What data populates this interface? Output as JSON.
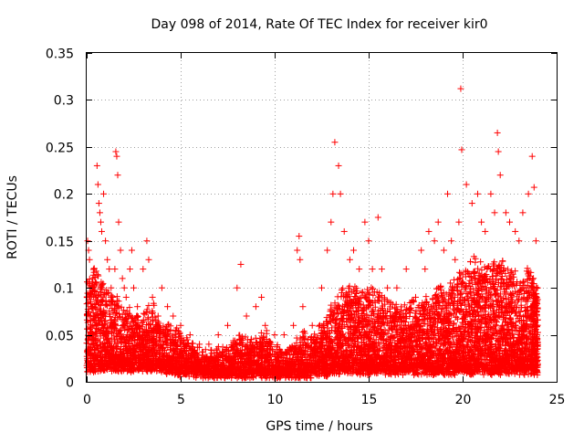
{
  "chart_data": {
    "type": "scatter",
    "title": "Day 098 of 2014, Rate Of TEC Index for receiver kir0",
    "xlabel": "GPS time / hours",
    "ylabel": "ROTI / TECUs",
    "xlim": [
      0,
      25
    ],
    "ylim": [
      0,
      0.35
    ],
    "x_ticks": [
      "0",
      "5",
      "10",
      "15",
      "20",
      "25"
    ],
    "y_ticks": [
      "0",
      "0.05",
      "0.1",
      "0.15",
      "0.2",
      "0.25",
      "0.3",
      "0.35"
    ],
    "x_tick_values": [
      0,
      5,
      10,
      15,
      20,
      25
    ],
    "y_tick_values": [
      0,
      0.05,
      0.1,
      0.15,
      0.2,
      0.25,
      0.3,
      0.35
    ],
    "grid": true,
    "marker": "plus",
    "color": "#ff0000",
    "series": [
      {
        "name": "ROTI",
        "points": [
          [
            0.05,
            0.15
          ],
          [
            0.1,
            0.14
          ],
          [
            0.15,
            0.13
          ],
          [
            0.2,
            0.1
          ],
          [
            0.25,
            0.08
          ],
          [
            0.3,
            0.06
          ],
          [
            0.35,
            0.05
          ],
          [
            0.4,
            0.12
          ],
          [
            0.45,
            0.09
          ],
          [
            0.5,
            0.07
          ],
          [
            0.55,
            0.23
          ],
          [
            0.6,
            0.21
          ],
          [
            0.65,
            0.19
          ],
          [
            0.7,
            0.18
          ],
          [
            0.75,
            0.17
          ],
          [
            0.8,
            0.16
          ],
          [
            0.9,
            0.2
          ],
          [
            1.0,
            0.15
          ],
          [
            1.1,
            0.13
          ],
          [
            1.2,
            0.12
          ],
          [
            1.3,
            0.1
          ],
          [
            1.4,
            0.09
          ],
          [
            1.5,
            0.12
          ],
          [
            1.55,
            0.245
          ],
          [
            1.6,
            0.24
          ],
          [
            1.65,
            0.22
          ],
          [
            1.7,
            0.17
          ],
          [
            1.8,
            0.14
          ],
          [
            1.9,
            0.11
          ],
          [
            2.0,
            0.1
          ],
          [
            2.1,
            0.09
          ],
          [
            2.3,
            0.12
          ],
          [
            2.4,
            0.14
          ],
          [
            2.5,
            0.1
          ],
          [
            2.7,
            0.08
          ],
          [
            3.0,
            0.12
          ],
          [
            3.2,
            0.15
          ],
          [
            3.3,
            0.13
          ],
          [
            3.5,
            0.09
          ],
          [
            3.8,
            0.07
          ],
          [
            4.0,
            0.1
          ],
          [
            4.3,
            0.08
          ],
          [
            4.6,
            0.07
          ],
          [
            5.0,
            0.06
          ],
          [
            5.5,
            0.05
          ],
          [
            6.0,
            0.04
          ],
          [
            6.5,
            0.04
          ],
          [
            7.0,
            0.05
          ],
          [
            7.5,
            0.06
          ],
          [
            8.0,
            0.1
          ],
          [
            8.2,
            0.125
          ],
          [
            8.5,
            0.07
          ],
          [
            9.0,
            0.08
          ],
          [
            9.3,
            0.09
          ],
          [
            9.5,
            0.06
          ],
          [
            10.0,
            0.05
          ],
          [
            10.5,
            0.05
          ],
          [
            11.0,
            0.06
          ],
          [
            11.2,
            0.14
          ],
          [
            11.3,
            0.155
          ],
          [
            11.35,
            0.13
          ],
          [
            11.5,
            0.08
          ],
          [
            12.0,
            0.06
          ],
          [
            12.5,
            0.1
          ],
          [
            12.8,
            0.14
          ],
          [
            13.0,
            0.17
          ],
          [
            13.1,
            0.2
          ],
          [
            13.2,
            0.255
          ],
          [
            13.4,
            0.23
          ],
          [
            13.5,
            0.2
          ],
          [
            13.7,
            0.16
          ],
          [
            14.0,
            0.13
          ],
          [
            14.2,
            0.14
          ],
          [
            14.5,
            0.12
          ],
          [
            14.8,
            0.17
          ],
          [
            15.0,
            0.15
          ],
          [
            15.2,
            0.12
          ],
          [
            15.5,
            0.175
          ],
          [
            15.7,
            0.12
          ],
          [
            16.0,
            0.1
          ],
          [
            16.5,
            0.1
          ],
          [
            17.0,
            0.12
          ],
          [
            17.5,
            0.09
          ],
          [
            17.8,
            0.14
          ],
          [
            18.0,
            0.12
          ],
          [
            18.2,
            0.16
          ],
          [
            18.5,
            0.15
          ],
          [
            18.7,
            0.17
          ],
          [
            19.0,
            0.14
          ],
          [
            19.2,
            0.2
          ],
          [
            19.4,
            0.15
          ],
          [
            19.6,
            0.13
          ],
          [
            19.8,
            0.17
          ],
          [
            19.9,
            0.312
          ],
          [
            19.95,
            0.247
          ],
          [
            20.2,
            0.21
          ],
          [
            20.5,
            0.19
          ],
          [
            20.8,
            0.2
          ],
          [
            21.0,
            0.17
          ],
          [
            21.2,
            0.16
          ],
          [
            21.5,
            0.2
          ],
          [
            21.7,
            0.18
          ],
          [
            21.85,
            0.265
          ],
          [
            21.9,
            0.245
          ],
          [
            22.0,
            0.22
          ],
          [
            22.3,
            0.18
          ],
          [
            22.5,
            0.17
          ],
          [
            22.8,
            0.16
          ],
          [
            23.0,
            0.15
          ],
          [
            23.2,
            0.18
          ],
          [
            23.5,
            0.2
          ],
          [
            23.7,
            0.24
          ],
          [
            23.8,
            0.207
          ],
          [
            23.9,
            0.15
          ]
        ]
      }
    ],
    "dense_band": [
      [
        0.0,
        0.015,
        0.11
      ],
      [
        0.3,
        0.015,
        0.12
      ],
      [
        0.6,
        0.015,
        0.11
      ],
      [
        0.9,
        0.015,
        0.1
      ],
      [
        1.2,
        0.015,
        0.09
      ],
      [
        1.5,
        0.015,
        0.09
      ],
      [
        1.8,
        0.015,
        0.08
      ],
      [
        2.1,
        0.015,
        0.08
      ],
      [
        2.4,
        0.015,
        0.07
      ],
      [
        2.7,
        0.015,
        0.07
      ],
      [
        3.0,
        0.015,
        0.08
      ],
      [
        3.3,
        0.015,
        0.08
      ],
      [
        3.6,
        0.015,
        0.07
      ],
      [
        3.9,
        0.012,
        0.06
      ],
      [
        4.2,
        0.012,
        0.06
      ],
      [
        4.5,
        0.012,
        0.055
      ],
      [
        4.8,
        0.01,
        0.05
      ],
      [
        5.1,
        0.01,
        0.045
      ],
      [
        5.4,
        0.01,
        0.04
      ],
      [
        5.7,
        0.008,
        0.035
      ],
      [
        6.0,
        0.008,
        0.03
      ],
      [
        6.3,
        0.008,
        0.03
      ],
      [
        6.6,
        0.008,
        0.03
      ],
      [
        6.9,
        0.008,
        0.035
      ],
      [
        7.2,
        0.008,
        0.035
      ],
      [
        7.5,
        0.008,
        0.04
      ],
      [
        7.8,
        0.008,
        0.045
      ],
      [
        8.1,
        0.008,
        0.05
      ],
      [
        8.4,
        0.008,
        0.045
      ],
      [
        8.7,
        0.008,
        0.045
      ],
      [
        9.0,
        0.008,
        0.05
      ],
      [
        9.3,
        0.008,
        0.05
      ],
      [
        9.6,
        0.008,
        0.04
      ],
      [
        9.9,
        0.008,
        0.035
      ],
      [
        10.2,
        0.008,
        0.035
      ],
      [
        10.5,
        0.008,
        0.035
      ],
      [
        10.8,
        0.008,
        0.04
      ],
      [
        11.1,
        0.008,
        0.045
      ],
      [
        11.4,
        0.008,
        0.05
      ],
      [
        11.7,
        0.008,
        0.045
      ],
      [
        12.0,
        0.01,
        0.05
      ],
      [
        12.3,
        0.01,
        0.06
      ],
      [
        12.6,
        0.01,
        0.07
      ],
      [
        12.9,
        0.012,
        0.08
      ],
      [
        13.2,
        0.012,
        0.09
      ],
      [
        13.5,
        0.012,
        0.1
      ],
      [
        13.8,
        0.012,
        0.1
      ],
      [
        14.1,
        0.012,
        0.1
      ],
      [
        14.4,
        0.012,
        0.095
      ],
      [
        14.7,
        0.012,
        0.095
      ],
      [
        15.0,
        0.012,
        0.1
      ],
      [
        15.3,
        0.012,
        0.095
      ],
      [
        15.6,
        0.012,
        0.09
      ],
      [
        15.9,
        0.012,
        0.085
      ],
      [
        16.2,
        0.012,
        0.08
      ],
      [
        16.5,
        0.012,
        0.08
      ],
      [
        16.8,
        0.012,
        0.085
      ],
      [
        17.1,
        0.012,
        0.085
      ],
      [
        17.4,
        0.012,
        0.08
      ],
      [
        17.7,
        0.012,
        0.085
      ],
      [
        18.0,
        0.012,
        0.09
      ],
      [
        18.3,
        0.012,
        0.09
      ],
      [
        18.6,
        0.012,
        0.1
      ],
      [
        18.9,
        0.012,
        0.1
      ],
      [
        19.2,
        0.012,
        0.105
      ],
      [
        19.5,
        0.012,
        0.11
      ],
      [
        19.8,
        0.012,
        0.12
      ],
      [
        20.1,
        0.012,
        0.12
      ],
      [
        20.4,
        0.012,
        0.13
      ],
      [
        20.7,
        0.012,
        0.13
      ],
      [
        21.0,
        0.012,
        0.12
      ],
      [
        21.3,
        0.012,
        0.12
      ],
      [
        21.6,
        0.012,
        0.13
      ],
      [
        21.9,
        0.012,
        0.13
      ],
      [
        22.2,
        0.012,
        0.12
      ],
      [
        22.5,
        0.012,
        0.12
      ],
      [
        22.8,
        0.012,
        0.11
      ],
      [
        23.1,
        0.012,
        0.11
      ],
      [
        23.4,
        0.012,
        0.12
      ],
      [
        23.7,
        0.012,
        0.11
      ],
      [
        23.85,
        0.012,
        0.1
      ]
    ]
  }
}
